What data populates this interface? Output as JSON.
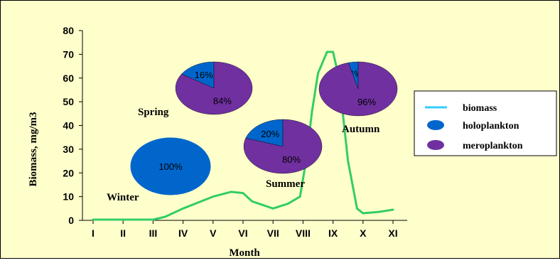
{
  "chart_data": {
    "type": "line",
    "title": "",
    "xlabel": "Month",
    "ylabel": "Biomass, mg/m3",
    "ylim": [
      0,
      80
    ],
    "yticks": [
      0,
      10,
      20,
      30,
      40,
      50,
      60,
      70,
      80
    ],
    "categories": [
      "I",
      "II",
      "III",
      "IV",
      "V",
      "VI",
      "VII",
      "VIII",
      "IX",
      "X",
      "XI"
    ],
    "series": [
      {
        "name": "biomass",
        "color": "#33cc66",
        "x": [
          1,
          2,
          3,
          3.4,
          4,
          5,
          5.6,
          6,
          6.3,
          7,
          7.5,
          7.9,
          8.1,
          8.3,
          8.5,
          8.8,
          9,
          9.2,
          9.5,
          9.8,
          10,
          10.5,
          11
        ],
        "y": [
          0.3,
          0.3,
          0.3,
          1.5,
          5,
          10,
          12,
          11.5,
          8,
          5,
          7,
          10,
          25,
          46,
          62,
          71,
          71,
          60,
          25,
          5,
          3,
          3.5,
          4.5
        ]
      }
    ],
    "pies": [
      {
        "season": "Winter",
        "slices": [
          {
            "name": "holoplankton",
            "value": 100,
            "label": "100%"
          }
        ]
      },
      {
        "season": "Spring",
        "slices": [
          {
            "name": "holoplankton",
            "value": 16,
            "label": "16%"
          },
          {
            "name": "meroplankton",
            "value": 84,
            "label": "84%"
          }
        ]
      },
      {
        "season": "Summer",
        "slices": [
          {
            "name": "holoplankton",
            "value": 20,
            "label": "20%"
          },
          {
            "name": "meroplankton",
            "value": 80,
            "label": "80%"
          }
        ]
      },
      {
        "season": "Autumn",
        "slices": [
          {
            "name": "holoplankton",
            "value": 4,
            "label": "4%"
          },
          {
            "name": "meroplankton",
            "value": 96,
            "label": "96%"
          }
        ]
      }
    ],
    "legend": {
      "position": "right",
      "items": [
        {
          "label": "biomass",
          "kind": "line",
          "color": "#33ccff"
        },
        {
          "label": "holoplankton",
          "kind": "ellipse",
          "color": "#0066cc"
        },
        {
          "label": "meroplankton",
          "kind": "ellipse",
          "color": "#7030a0"
        }
      ]
    },
    "colors": {
      "background": "#ffffcc",
      "holoplankton": "#0066cc",
      "meroplankton": "#7030a0",
      "biomass_line": "#33cc66",
      "legend_line": "#33ccff"
    },
    "grid": false
  }
}
